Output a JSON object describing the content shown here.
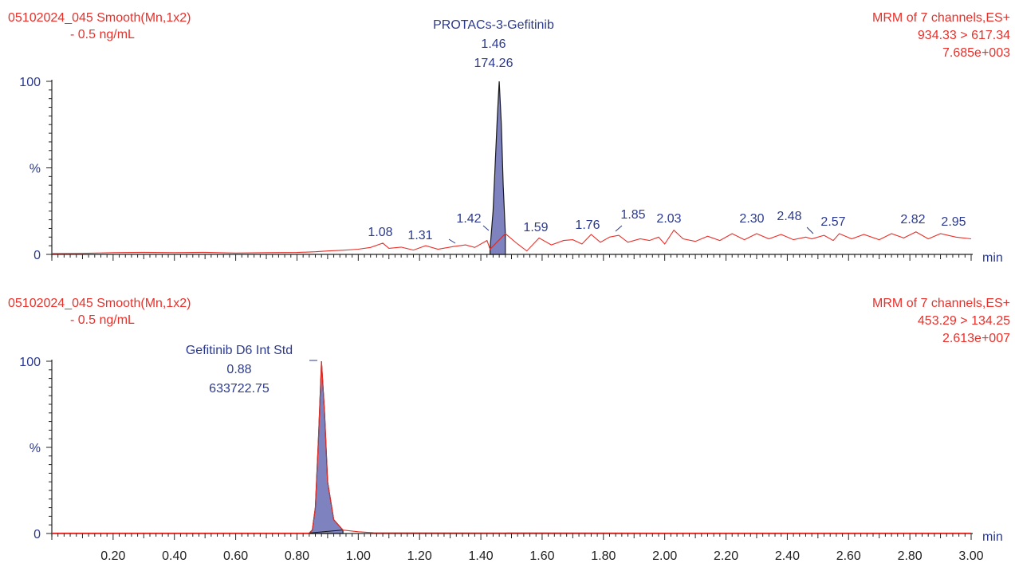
{
  "colors": {
    "header": "#e8302a",
    "label": "#2b3a8f",
    "trace": "#e8302a",
    "peak_fill": "#7e83c0",
    "peak_outline": "#1a1a1a",
    "axis": "#222222"
  },
  "chart_data": [
    {
      "type": "line",
      "header_left": [
        "05102024_045 Smooth(Mn,1x2)",
        "- 0.5 ng/mL"
      ],
      "header_right": [
        "MRM of 7 channels,ES+",
        "934.33 > 617.34",
        "7.685e+003"
      ],
      "peak_label": [
        "PROTACs-3-Gefitinib",
        "1.46",
        "174.26"
      ],
      "y_tick_labels": [
        "100",
        "%",
        "0"
      ],
      "xlabel": "min",
      "xlim": [
        0.0,
        3.0
      ],
      "ylim": [
        0,
        100
      ],
      "peak": {
        "rt": 1.46,
        "start": 1.43,
        "end": 1.48,
        "height": 100
      },
      "trace": [
        [
          0.0,
          0.5
        ],
        [
          0.1,
          0.6
        ],
        [
          0.2,
          1.0
        ],
        [
          0.3,
          1.2
        ],
        [
          0.4,
          1.0
        ],
        [
          0.5,
          1.2
        ],
        [
          0.6,
          0.8
        ],
        [
          0.7,
          1.0
        ],
        [
          0.8,
          1.1
        ],
        [
          0.86,
          1.5
        ],
        [
          0.9,
          2.0
        ],
        [
          0.95,
          2.4
        ],
        [
          1.0,
          3.0
        ],
        [
          1.04,
          4.0
        ],
        [
          1.08,
          6.5
        ],
        [
          1.1,
          3.5
        ],
        [
          1.14,
          4.2
        ],
        [
          1.18,
          2.5
        ],
        [
          1.22,
          5.0
        ],
        [
          1.26,
          3.0
        ],
        [
          1.31,
          4.5
        ],
        [
          1.35,
          5.5
        ],
        [
          1.38,
          4.0
        ],
        [
          1.42,
          8.0
        ],
        [
          1.43,
          3.0
        ],
        [
          1.48,
          12.0
        ],
        [
          1.52,
          6.0
        ],
        [
          1.55,
          2.0
        ],
        [
          1.59,
          9.5
        ],
        [
          1.63,
          5.5
        ],
        [
          1.67,
          8.0
        ],
        [
          1.7,
          8.5
        ],
        [
          1.73,
          6.0
        ],
        [
          1.76,
          11.5
        ],
        [
          1.79,
          7.0
        ],
        [
          1.82,
          10.0
        ],
        [
          1.85,
          11.0
        ],
        [
          1.88,
          7.0
        ],
        [
          1.92,
          9.0
        ],
        [
          1.95,
          8.0
        ],
        [
          1.98,
          10.0
        ],
        [
          2.0,
          6.0
        ],
        [
          2.03,
          14.0
        ],
        [
          2.06,
          9.0
        ],
        [
          2.1,
          7.5
        ],
        [
          2.14,
          10.5
        ],
        [
          2.18,
          8.0
        ],
        [
          2.22,
          12.0
        ],
        [
          2.26,
          8.5
        ],
        [
          2.3,
          12.0
        ],
        [
          2.34,
          9.0
        ],
        [
          2.38,
          11.5
        ],
        [
          2.42,
          8.5
        ],
        [
          2.46,
          10.0
        ],
        [
          2.48,
          9.0
        ],
        [
          2.52,
          11.0
        ],
        [
          2.55,
          8.0
        ],
        [
          2.57,
          12.0
        ],
        [
          2.61,
          9.0
        ],
        [
          2.65,
          11.5
        ],
        [
          2.7,
          8.5
        ],
        [
          2.74,
          12.0
        ],
        [
          2.78,
          9.5
        ],
        [
          2.82,
          13.0
        ],
        [
          2.86,
          9.0
        ],
        [
          2.9,
          12.0
        ],
        [
          2.95,
          10.0
        ],
        [
          3.0,
          9.0
        ]
      ],
      "labeled_minor_peaks": [
        {
          "label": "1.08",
          "rt": 1.08
        },
        {
          "label": "1.31",
          "rt": 1.31
        },
        {
          "label": "1.42",
          "rt": 1.42
        },
        {
          "label": "1.59",
          "rt": 1.59
        },
        {
          "label": "1.76",
          "rt": 1.76
        },
        {
          "label": "1.85",
          "rt": 1.85
        },
        {
          "label": "2.03",
          "rt": 2.03
        },
        {
          "label": "2.30",
          "rt": 2.3
        },
        {
          "label": "2.48",
          "rt": 2.48
        },
        {
          "label": "2.57",
          "rt": 2.57
        },
        {
          "label": "2.82",
          "rt": 2.82
        },
        {
          "label": "2.95",
          "rt": 2.95
        }
      ]
    },
    {
      "type": "line",
      "header_left": [
        "05102024_045 Smooth(Mn,1x2)",
        "- 0.5 ng/mL"
      ],
      "header_right": [
        "MRM of 7 channels,ES+",
        "453.29 > 134.25",
        "2.613e+007"
      ],
      "peak_label": [
        "Gefitinib D6 Int Std",
        "0.88",
        "633722.75"
      ],
      "y_tick_labels": [
        "100",
        "%",
        "0"
      ],
      "xlabel": "min",
      "xlim": [
        0.0,
        3.0
      ],
      "ylim": [
        0,
        100
      ],
      "x_tick_labels": [
        "0.20",
        "0.40",
        "0.60",
        "0.80",
        "1.00",
        "1.20",
        "1.40",
        "1.60",
        "1.80",
        "2.00",
        "2.20",
        "2.40",
        "2.60",
        "2.80",
        "3.00"
      ],
      "peak": {
        "rt": 0.88,
        "start": 0.84,
        "end": 0.95,
        "height": 100
      },
      "trace": [
        [
          0.0,
          0.3
        ],
        [
          0.5,
          0.3
        ],
        [
          0.84,
          0.3
        ],
        [
          0.85,
          2.0
        ],
        [
          0.86,
          15.0
        ],
        [
          0.87,
          55.0
        ],
        [
          0.88,
          100.0
        ],
        [
          0.89,
          70.0
        ],
        [
          0.9,
          30.0
        ],
        [
          0.92,
          8.0
        ],
        [
          0.95,
          2.0
        ],
        [
          1.0,
          1.0
        ],
        [
          1.05,
          0.4
        ],
        [
          2.0,
          0.3
        ],
        [
          3.0,
          0.3
        ]
      ]
    }
  ]
}
